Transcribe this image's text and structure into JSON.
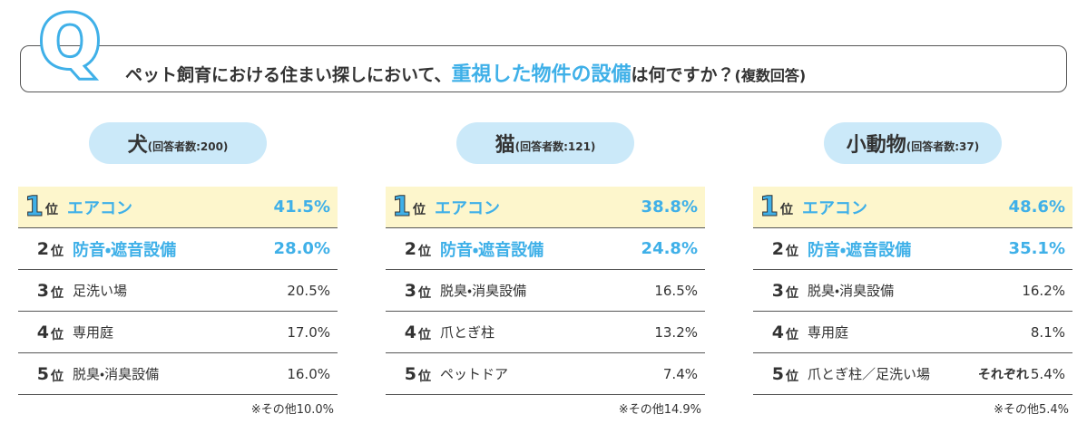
{
  "header": {
    "icon": "Q",
    "question_before": "ペット飼育における住まい探しにおいて、",
    "question_highlight": "重視した物件の設備",
    "question_after": "は何ですか？",
    "question_note": "(複数回答)"
  },
  "rank_unit": "位",
  "panels": [
    {
      "name": "犬",
      "count": "(回答者数:200)",
      "rows": [
        {
          "rank": "1",
          "item": "エアコン",
          "value": "41.5%"
        },
        {
          "rank": "2",
          "item": "防音・遮音設備",
          "value": "28.0%"
        },
        {
          "rank": "3",
          "item": "足洗い場",
          "value": "20.5%"
        },
        {
          "rank": "4",
          "item": "専用庭",
          "value": "17.0%"
        },
        {
          "rank": "5",
          "item": "脱臭・消臭設備",
          "value": "16.0%"
        }
      ],
      "footnote": "※その他10.0%"
    },
    {
      "name": "猫",
      "count": "(回答者数:121)",
      "rows": [
        {
          "rank": "1",
          "item": "エアコン",
          "value": "38.8%"
        },
        {
          "rank": "2",
          "item": "防音・遮音設備",
          "value": "24.8%"
        },
        {
          "rank": "3",
          "item": "脱臭・消臭設備",
          "value": "16.5%"
        },
        {
          "rank": "4",
          "item": "爪とぎ柱",
          "value": "13.2%"
        },
        {
          "rank": "5",
          "item": "ペットドア",
          "value": "7.4%"
        }
      ],
      "footnote": "※その他14.9%"
    },
    {
      "name": "小動物",
      "count": "(回答者数:37)",
      "rows": [
        {
          "rank": "1",
          "item": "エアコン",
          "value": "48.6%"
        },
        {
          "rank": "2",
          "item": "防音・遮音設備",
          "value": "35.1%"
        },
        {
          "rank": "3",
          "item": "脱臭・消臭設備",
          "value": "16.2%"
        },
        {
          "rank": "4",
          "item": "専用庭",
          "value": "8.1%"
        },
        {
          "rank": "5",
          "item": "爪とぎ柱／足洗い場",
          "note": "それぞれ",
          "value": "5.4%"
        }
      ],
      "footnote": "※その他5.4%"
    }
  ]
}
